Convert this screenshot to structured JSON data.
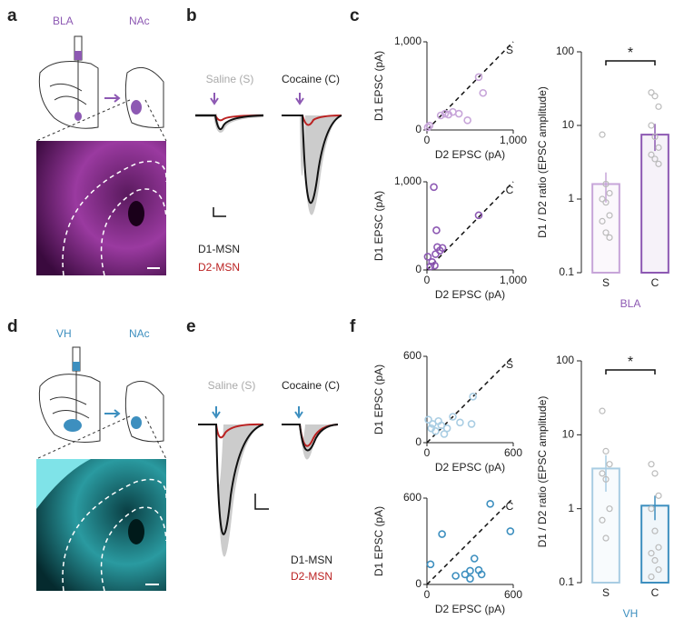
{
  "panels": {
    "a": {
      "label": "a",
      "source": "BLA",
      "target": "NAc"
    },
    "b": {
      "label": "b",
      "saline": "Saline (S)",
      "cocaine": "Cocaine (C)",
      "d1": "D1-MSN",
      "d2": "D2-MSN"
    },
    "c": {
      "label": "c"
    },
    "d": {
      "label": "d",
      "source": "VH",
      "target": "NAc"
    },
    "e": {
      "label": "e",
      "saline": "Saline (S)",
      "cocaine": "Cocaine (C)",
      "d1": "D1-MSN",
      "d2": "D2-MSN"
    },
    "f": {
      "label": "f"
    }
  },
  "chart_data": [
    {
      "type": "scatter",
      "annotation": "S",
      "xlabel": "D2 EPSC (pA)",
      "ylabel": "D1 EPSC (pA)",
      "color": "#c7a5d9",
      "xlim": [
        0,
        1000
      ],
      "ylim": [
        0,
        1000
      ],
      "xticks": [
        0,
        {
          "value": 1000,
          "label": "1,000"
        }
      ],
      "yticks": [
        0,
        {
          "value": 1000,
          "label": "1,000"
        }
      ],
      "x": [
        30,
        10,
        160,
        210,
        250,
        300,
        370,
        470,
        600,
        650
      ],
      "y": [
        50,
        30,
        165,
        185,
        175,
        205,
        185,
        110,
        600,
        420
      ]
    },
    {
      "type": "scatter",
      "annotation": "C",
      "xlabel": "D2 EPSC (pA)",
      "ylabel": "D1 EPSC (pA)",
      "color": "#8d59b3",
      "xlim": [
        0,
        1000
      ],
      "ylim": [
        0,
        1000
      ],
      "xticks": [
        0,
        {
          "value": 1000,
          "label": "1,000"
        }
      ],
      "yticks": [
        0,
        {
          "value": 1000,
          "label": "1,000"
        }
      ],
      "x": [
        80,
        110,
        10,
        60,
        100,
        150,
        120,
        40,
        90,
        180,
        600
      ],
      "y": [
        940,
        450,
        150,
        90,
        180,
        220,
        260,
        40,
        50,
        250,
        620
      ]
    },
    {
      "type": "bar",
      "log_scale": true,
      "ylabel": "D1 / D2 ratio (EPSC amplitude)",
      "xlabel": "BLA",
      "xlabel_color": "#8d59b3",
      "annotation": "*",
      "categories": [
        "S",
        "C"
      ],
      "values": [
        1.6,
        7.5
      ],
      "errors": [
        0.7,
        3.0
      ],
      "colors": [
        "#c7a5d9",
        "#8d59b3"
      ],
      "points": [
        [
          7.5,
          1.6,
          1.2,
          1.0,
          0.9,
          0.6,
          0.5,
          0.35,
          0.3
        ],
        [
          28,
          25,
          18,
          10,
          7,
          5,
          4,
          3.5,
          3
        ]
      ],
      "ylim": [
        0.1,
        100
      ],
      "yticks": [
        0.1,
        1,
        10,
        100
      ]
    },
    {
      "type": "scatter",
      "annotation": "S",
      "xlabel": "D2 EPSC (pA)",
      "ylabel": "D1 EPSC (pA)",
      "color": "#a9cde3",
      "xlim": [
        0,
        600
      ],
      "ylim": [
        0,
        600
      ],
      "xticks": [
        0,
        600
      ],
      "yticks": [
        0,
        600
      ],
      "x": [
        10,
        40,
        60,
        80,
        100,
        140,
        180,
        230,
        320,
        310,
        120,
        30
      ],
      "y": [
        160,
        130,
        80,
        150,
        120,
        100,
        180,
        140,
        320,
        130,
        60,
        100
      ]
    },
    {
      "type": "scatter",
      "annotation": "C",
      "xlabel": "D2 EPSC (pA)",
      "ylabel": "D1 EPSC (pA)",
      "color": "#3d8fbf",
      "xlim": [
        0,
        600
      ],
      "ylim": [
        0,
        600
      ],
      "xticks": [
        0,
        600
      ],
      "yticks": [
        0,
        600
      ],
      "x": [
        25,
        105,
        200,
        265,
        300,
        330,
        360,
        300,
        440,
        580,
        380
      ],
      "y": [
        140,
        350,
        60,
        70,
        95,
        180,
        100,
        40,
        560,
        370,
        70
      ]
    },
    {
      "type": "bar",
      "log_scale": true,
      "ylabel": "D1 / D2 ratio (EPSC amplitude)",
      "xlabel": "VH",
      "xlabel_color": "#3d8fbf",
      "annotation": "*",
      "categories": [
        "S",
        "C"
      ],
      "values": [
        3.5,
        1.1
      ],
      "errors": [
        1.8,
        0.4
      ],
      "colors": [
        "#a9cde3",
        "#3d8fbf"
      ],
      "points": [
        [
          21,
          6,
          4,
          3,
          2.5,
          1,
          0.7,
          0.4
        ],
        [
          4,
          3,
          1.5,
          1,
          0.5,
          0.3,
          0.25,
          0.2,
          0.15,
          0.12
        ]
      ],
      "ylim": [
        0.1,
        100
      ],
      "yticks": [
        0.1,
        1,
        10,
        100
      ]
    }
  ]
}
